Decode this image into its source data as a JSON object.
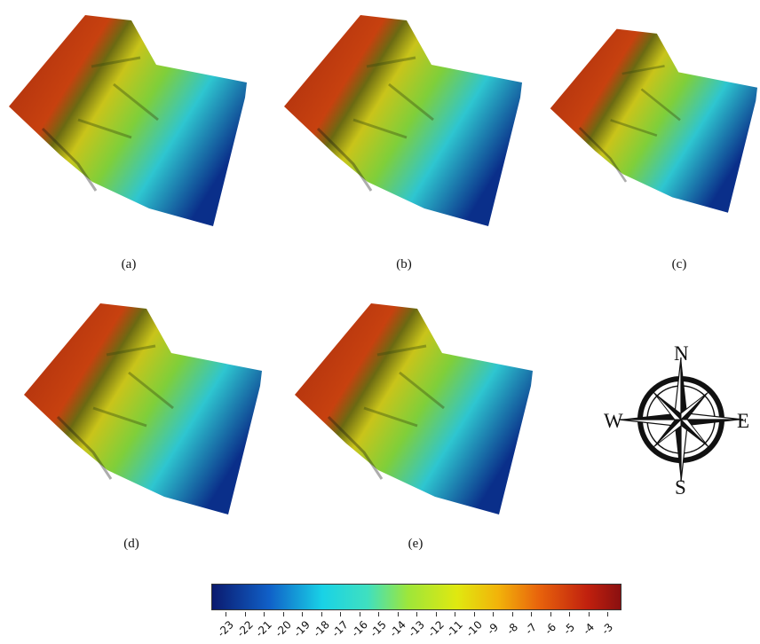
{
  "panels": [
    {
      "id": "a",
      "caption": "(a)"
    },
    {
      "id": "b",
      "caption": "(b)"
    },
    {
      "id": "c",
      "caption": "(c)"
    },
    {
      "id": "d",
      "caption": "(d)"
    },
    {
      "id": "e",
      "caption": "(e)"
    }
  ],
  "compass": {
    "north": "N",
    "south": "S",
    "east": "E",
    "west": "W"
  },
  "colorbar": {
    "ticks": [
      "-23",
      "-22",
      "-21",
      "-20",
      "-19",
      "-18",
      "-17",
      "-16",
      "-15",
      "-14",
      "-13",
      "-12",
      "-11",
      "-10",
      "-9",
      "-8",
      "-7",
      "-6",
      "-5",
      "-4",
      "-3"
    ],
    "colors": [
      "#0b1a6e",
      "#1060c8",
      "#19d2e6",
      "#3fe0c0",
      "#9ee63a",
      "#e0e810",
      "#f2b30a",
      "#e8630c",
      "#c0200e",
      "#8a1010"
    ]
  }
}
